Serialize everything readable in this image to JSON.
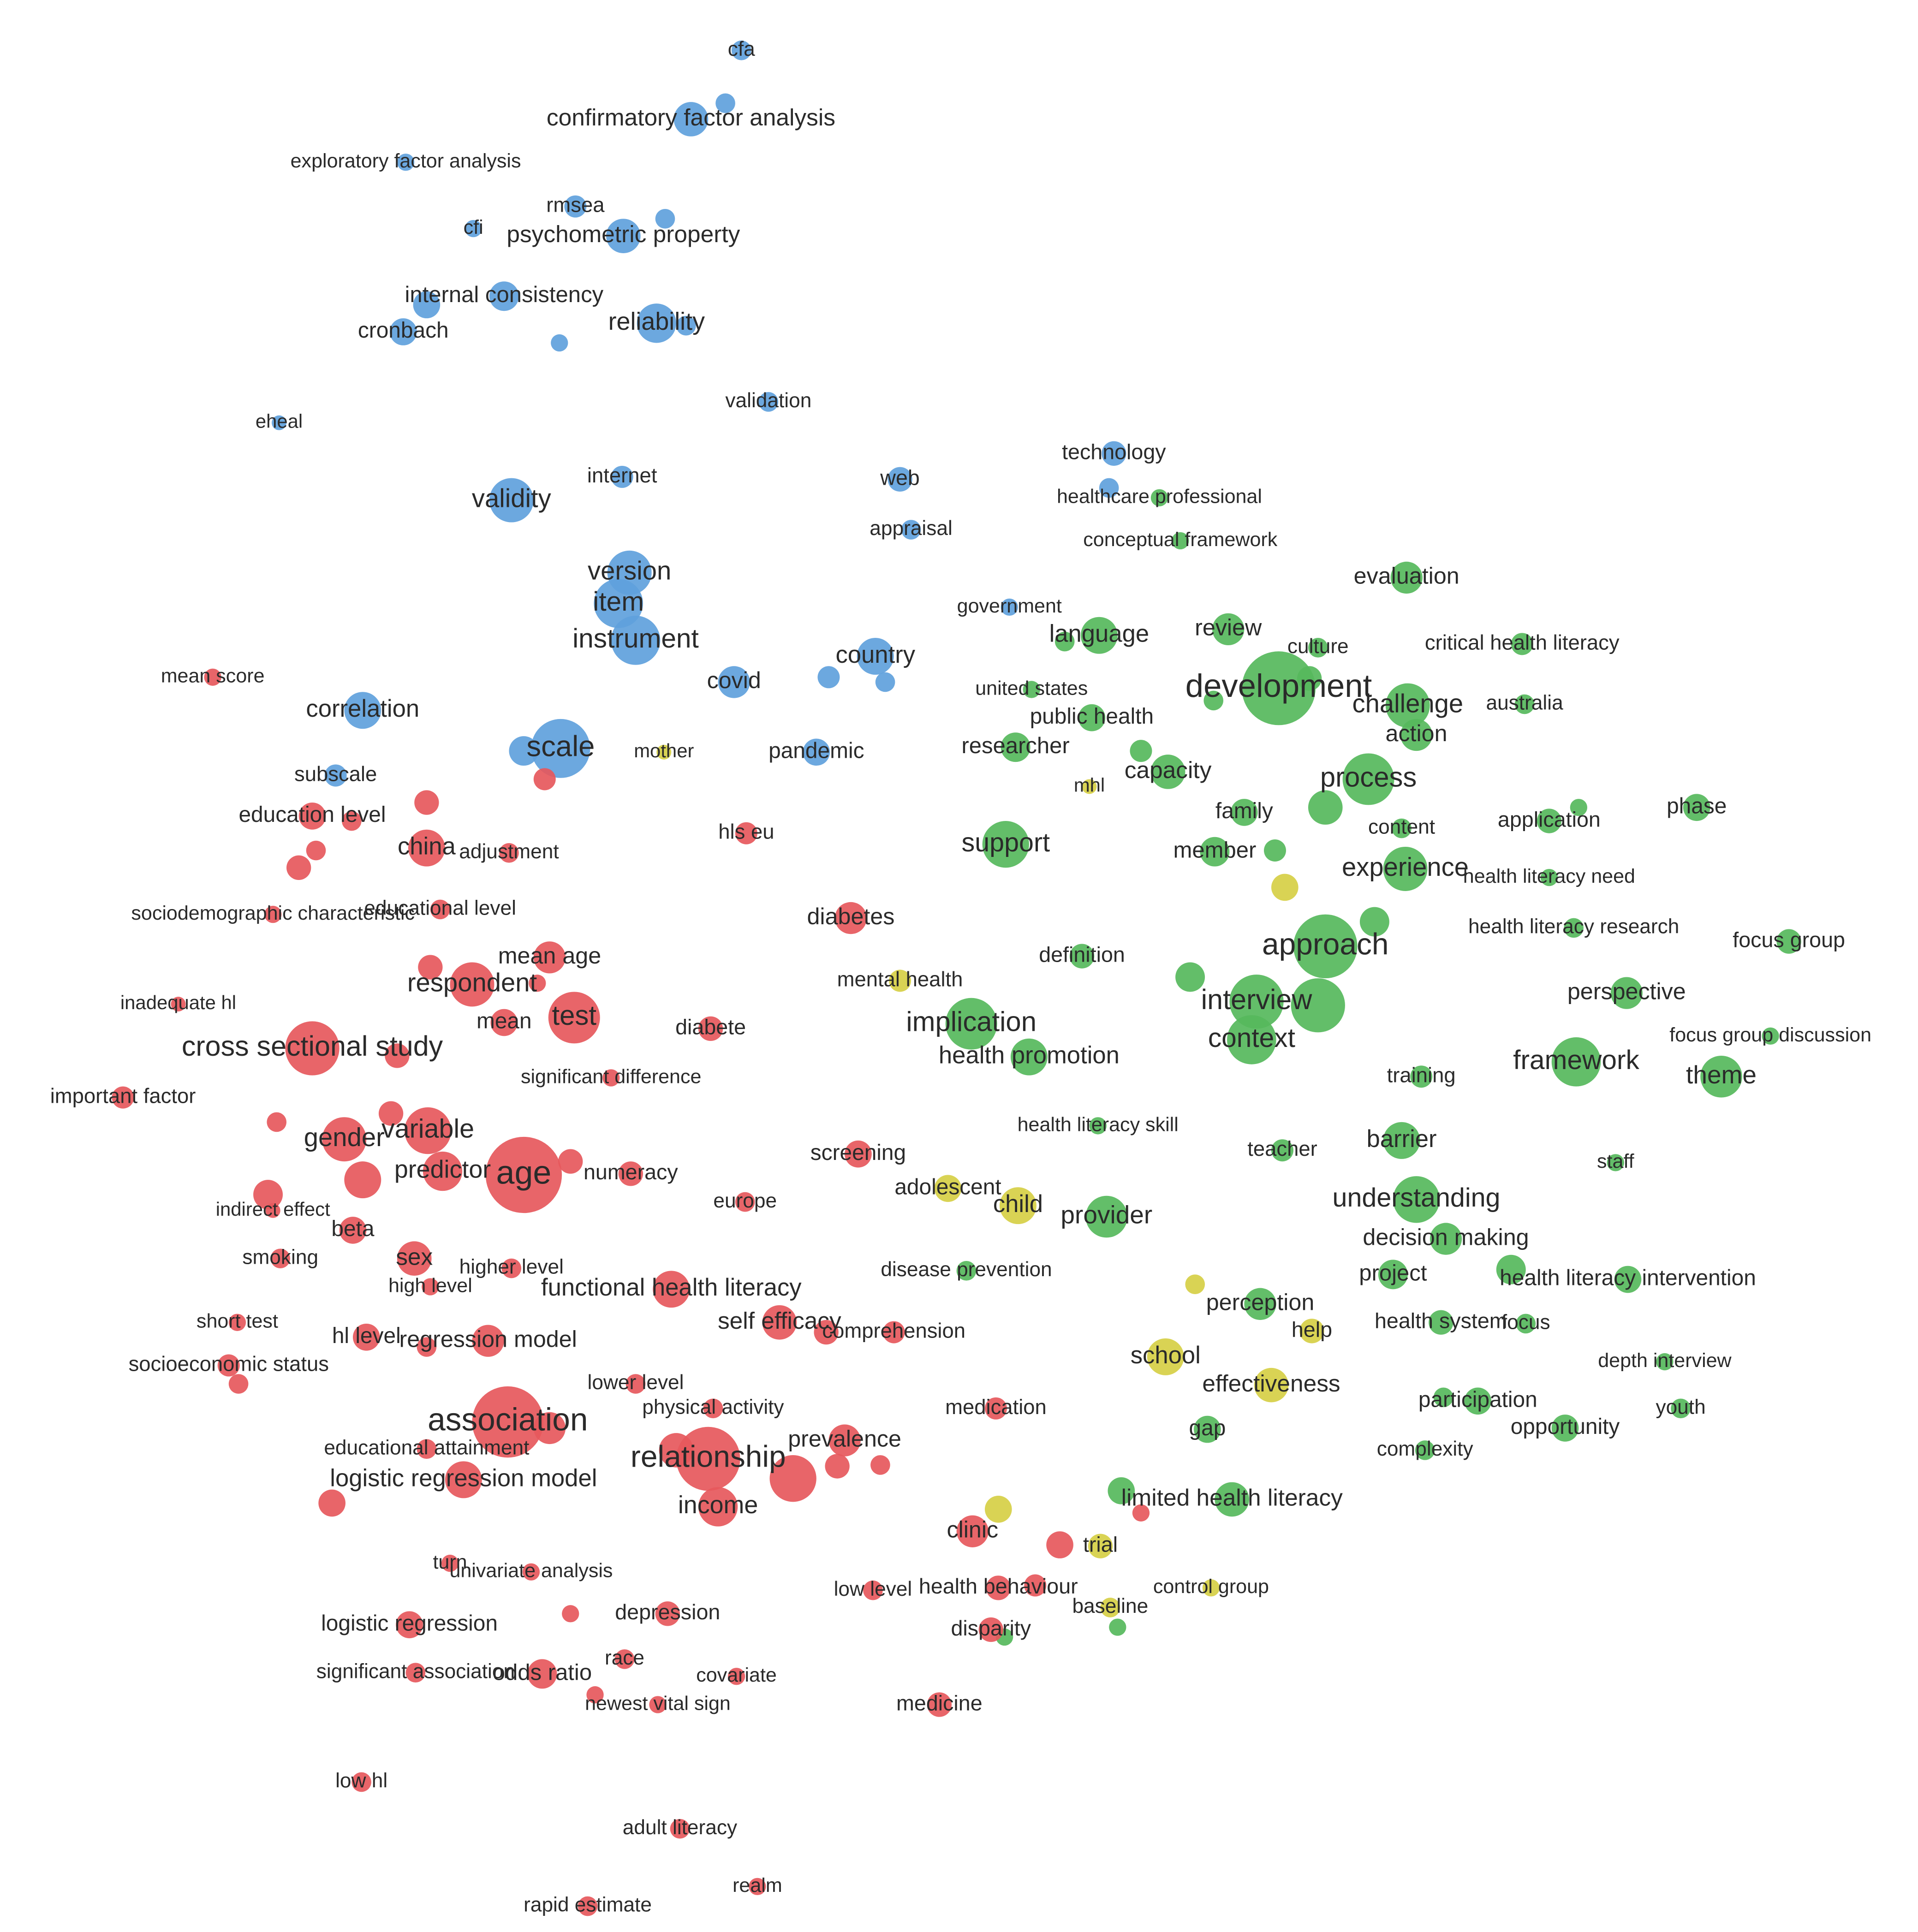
{
  "chart_data": {
    "type": "bubble",
    "xlim": [
      0,
      1560
    ],
    "ylim": [
      1572,
      0
    ],
    "series": [
      {
        "color": "#5fa1dc",
        "labels": [
          "cfa",
          "confirmatory factor analysis",
          null,
          "exploratory factor analysis",
          "rmsea",
          "cfi",
          "psychometric property",
          null,
          "internal consistency",
          null,
          "cronbach",
          "reliability",
          null,
          null,
          "validation",
          "eheal",
          "internet",
          "web",
          "validity",
          "technology",
          null,
          "appraisal",
          "version",
          "item",
          "instrument",
          "government",
          "country",
          "covid",
          null,
          null,
          "correlation",
          "scale",
          null,
          "pandemic",
          "subscale"
        ],
        "x": [
          603,
          562,
          590,
          330,
          468,
          385,
          507,
          541,
          410,
          347,
          328,
          534,
          558,
          455,
          625,
          227,
          506,
          732,
          416,
          906,
          902,
          741,
          512,
          503,
          517,
          821,
          712,
          597,
          674,
          720,
          295,
          456,
          426,
          664,
          273
        ],
        "y": [
          41,
          97,
          84,
          132,
          168,
          186,
          192,
          178,
          241,
          248,
          270,
          263,
          265,
          279,
          327,
          344,
          388,
          390,
          407,
          369,
          397,
          431,
          466,
          491,
          521,
          494,
          534,
          555,
          551,
          555,
          578,
          609,
          611,
          612,
          631
        ],
        "sizes": [
          8,
          14,
          8,
          7,
          9,
          7,
          14,
          8,
          12,
          11,
          11,
          16,
          8,
          7,
          8,
          6,
          9,
          10,
          18,
          10,
          8,
          8,
          18,
          20,
          20,
          7,
          15,
          13,
          9,
          8,
          15,
          24,
          12,
          11,
          9
        ]
      },
      {
        "color": "#d6cf45",
        "labels": [
          "mother",
          "mhl",
          null,
          "mental health",
          "adolescent",
          "child",
          null,
          "help",
          "school",
          "effectiveness",
          null,
          "trial",
          "control group",
          "baseline"
        ],
        "x": [
          540,
          886,
          1045,
          732,
          771,
          828,
          972,
          1067,
          948,
          1034,
          812,
          895,
          985,
          903
        ],
        "y": [
          612,
          640,
          722,
          798,
          967,
          981,
          1045,
          1083,
          1104,
          1127,
          1228,
          1258,
          1292,
          1308
        ],
        "sizes": [
          6,
          6,
          11,
          9,
          11,
          15,
          8,
          10,
          15,
          14,
          11,
          10,
          7,
          8
        ]
      },
      {
        "color": "#56b95c",
        "labels": [
          "healthcare professional",
          "conceptual framework",
          "evaluation",
          "language",
          null,
          "review",
          "culture",
          "critical health literacy",
          "development",
          null,
          null,
          "united states",
          "challenge",
          "australia",
          "action",
          "public health",
          "researcher",
          null,
          "capacity",
          "process",
          "family",
          null,
          "content",
          "application",
          null,
          "phase",
          "support",
          "member",
          null,
          "experience",
          "health literacy need",
          null,
          "approach",
          "health literacy research",
          "focus group",
          "definition",
          null,
          "interview",
          null,
          "perspective",
          "context",
          "implication",
          "focus group discussion",
          "health promotion",
          "framework",
          "training",
          "theme",
          "health literacy skill",
          "teacher",
          "barrier",
          "staff",
          "understanding",
          "decision making",
          "provider",
          "disease prevention",
          "project",
          "health literacy intervention",
          null,
          "perception",
          "health system",
          "focus",
          "depth interview",
          "participation",
          null,
          "youth",
          "opportunity",
          "gap",
          "complexity",
          "limited health literacy",
          null,
          null,
          null
        ],
        "x": [
          943,
          960,
          1144,
          894,
          866,
          999,
          1072,
          1238,
          1040,
          1065,
          987,
          839,
          1145,
          1240,
          1152,
          888,
          826,
          928,
          950,
          1113,
          1012,
          1078,
          1140,
          1260,
          1284,
          1380,
          818,
          988,
          1037,
          1143,
          1260,
          1118,
          1078,
          1280,
          1455,
          880,
          968,
          1022,
          1072,
          1323,
          1018,
          790,
          1440,
          837,
          1282,
          1156,
          1400,
          893,
          1043,
          1140,
          1314,
          1152,
          1176,
          900,
          786,
          1133,
          1324,
          1229,
          1025,
          1172,
          1241,
          1354,
          1202,
          1174,
          1367,
          1273,
          982,
          1159,
          1002,
          912,
          817,
          909
        ],
        "y": [
          405,
          440,
          470,
          517,
          522,
          512,
          527,
          524,
          560,
          552,
          570,
          561,
          574,
          573,
          598,
          584,
          608,
          611,
          628,
          634,
          661,
          657,
          674,
          668,
          657,
          657,
          687,
          693,
          692,
          707,
          714,
          750,
          770,
          755,
          766,
          778,
          795,
          815,
          818,
          808,
          846,
          833,
          843,
          860,
          864,
          876,
          876,
          916,
          936,
          928,
          946,
          976,
          1008,
          990,
          1034,
          1037,
          1041,
          1033,
          1061,
          1076,
          1077,
          1108,
          1140,
          1137,
          1146,
          1162,
          1163,
          1180,
          1220,
          1213,
          1332,
          1324
        ],
        "sizes": [
          7,
          7,
          13,
          15,
          8,
          13,
          8,
          9,
          30,
          10,
          8,
          7,
          18,
          8,
          13,
          11,
          12,
          9,
          14,
          21,
          11,
          14,
          8,
          10,
          7,
          11,
          19,
          12,
          9,
          18,
          7,
          12,
          26,
          8,
          10,
          10,
          12,
          22,
          22,
          13,
          20,
          21,
          7,
          15,
          20,
          9,
          17,
          7,
          9,
          15,
          7,
          19,
          13,
          17,
          8,
          12,
          11,
          12,
          13,
          10,
          8,
          7,
          11,
          8,
          8,
          11,
          11,
          8,
          14,
          11,
          7,
          7
        ]
      },
      {
        "color": "#e6585c",
        "labels": [
          "mean score",
          null,
          "education level",
          null,
          null,
          "china",
          "adjustment",
          "hls eu",
          null,
          null,
          "sociodemographic characteristic",
          "educational level",
          "diabetes",
          "mean age",
          null,
          "respondent",
          null,
          "mean",
          "test",
          "inadequate hl",
          "diabete",
          "cross sectional study",
          null,
          "significant difference",
          "important factor",
          null,
          null,
          "gender",
          "variable",
          "age",
          null,
          "predictor",
          null,
          "numeracy",
          "screening",
          "europe",
          null,
          "indirect effect",
          "beta",
          "smoking",
          "sex",
          "higher level",
          "high level",
          "functional health literacy",
          "short test",
          "self efficacy",
          null,
          "comprehension",
          "hl level",
          "regression model",
          null,
          "socioeconomic status",
          null,
          "lower level",
          "physical activity",
          "medication",
          "association",
          null,
          "educational attainment",
          "prevalence",
          "relationship",
          null,
          null,
          null,
          null,
          "logistic regression model",
          "income",
          null,
          "clinic",
          null,
          null,
          "turn",
          "univariate analysis",
          "health behaviour",
          null,
          "low level",
          "logistic regression",
          "depression",
          null,
          "disparity",
          "significant association",
          "race",
          "odds ratio",
          "covariate",
          null,
          "newest vital sign",
          "medicine",
          "low hl",
          "adult literacy",
          "realm",
          "rapid estimate"
        ],
        "x": [
          173,
          443,
          254,
          286,
          347,
          347,
          414,
          607,
          257,
          243,
          222,
          358,
          692,
          447,
          350,
          384,
          437,
          410,
          467,
          145,
          578,
          254,
          323,
          497,
          100,
          318,
          225,
          280,
          348,
          426,
          464,
          360,
          295,
          513,
          698,
          606,
          218,
          222,
          287,
          228,
          337,
          416,
          350,
          546,
          193,
          634,
          672,
          727,
          298,
          397,
          347,
          186,
          194,
          517,
          580,
          810,
          413,
          447,
          347,
          687,
          576,
          550,
          645,
          681,
          716,
          377,
          584,
          270,
          791,
          862,
          928,
          366,
          432,
          812,
          842,
          710,
          333,
          543,
          464,
          806,
          338,
          508,
          441,
          599,
          484,
          535,
          764,
          294,
          553,
          616,
          478
        ],
        "y": [
          551,
          634,
          664,
          668,
          653,
          690,
          694,
          678,
          692,
          706,
          744,
          740,
          747,
          779,
          787,
          801,
          800,
          832,
          828,
          817,
          837,
          853,
          859,
          877,
          893,
          906,
          913,
          927,
          920,
          956,
          945,
          953,
          960,
          955,
          939,
          978,
          972,
          985,
          1001,
          1024,
          1024,
          1032,
          1047,
          1049,
          1076,
          1076,
          1084,
          1084,
          1088,
          1091,
          1096,
          1111,
          1126,
          1126,
          1146,
          1146,
          1157,
          1162,
          1179,
          1172,
          1187,
          1180,
          1203,
          1193,
          1192,
          1204,
          1226,
          1223,
          1246,
          1257,
          1231,
          1272,
          1279,
          1292,
          1290,
          1294,
          1322,
          1313,
          1313,
          1326,
          1361,
          1350,
          1362,
          1364,
          1379,
          1387,
          1387,
          1450,
          1488,
          1535,
          1551
        ],
        "sizes": [
          7,
          9,
          11,
          8,
          10,
          15,
          8,
          9,
          8,
          10,
          7,
          8,
          13,
          13,
          10,
          18,
          7,
          11,
          21,
          6,
          10,
          22,
          10,
          7,
          9,
          10,
          8,
          18,
          19,
          31,
          10,
          16,
          15,
          10,
          11,
          8,
          12,
          6,
          11,
          8,
          14,
          8,
          7,
          15,
          7,
          14,
          10,
          9,
          11,
          13,
          8,
          9,
          8,
          8,
          8,
          9,
          29,
          13,
          8,
          13,
          26,
          14,
          19,
          10,
          8,
          15,
          16,
          11,
          13,
          11,
          7,
          7,
          7,
          10,
          9,
          8,
          11,
          10,
          7,
          10,
          8,
          8,
          12,
          7,
          7,
          7,
          10,
          8,
          8,
          7,
          8
        ]
      }
    ]
  }
}
